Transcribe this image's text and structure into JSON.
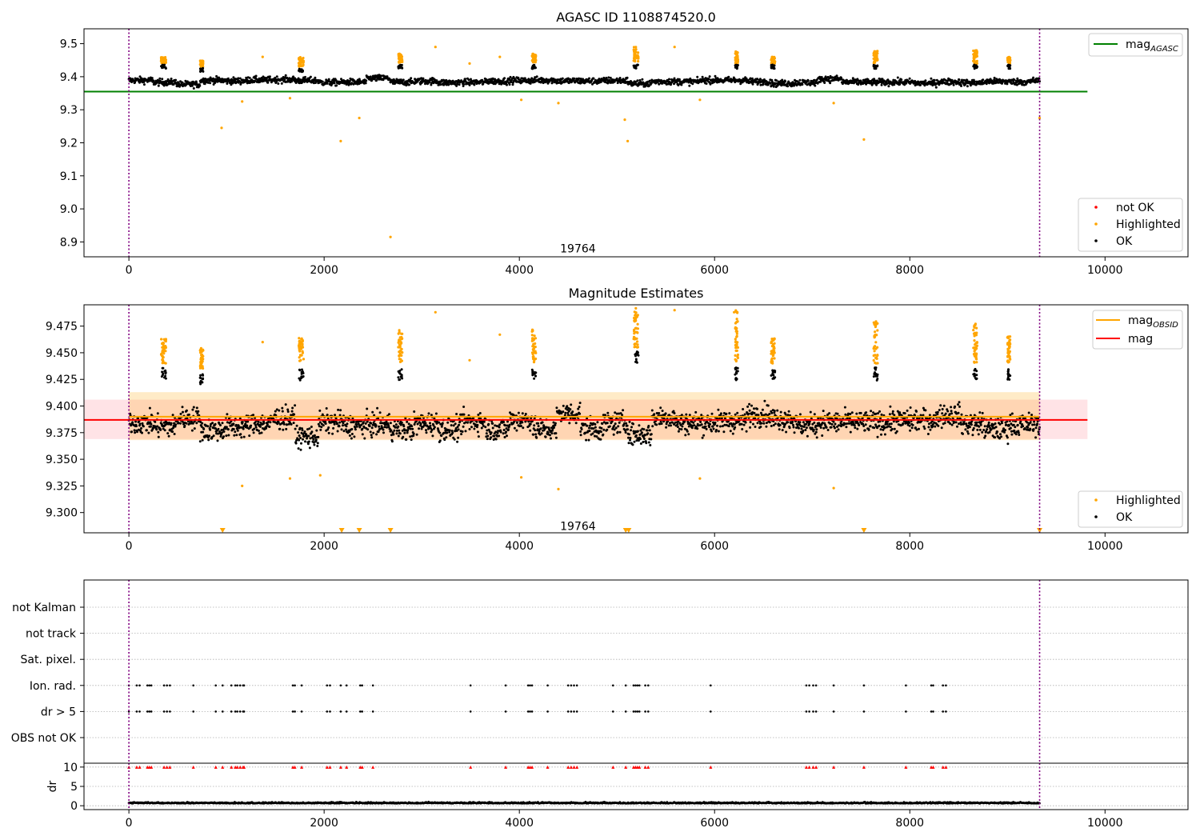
{
  "chart_data": [
    {
      "panel": "top",
      "type": "scatter",
      "title": "AGASC ID 1108874520.0",
      "xlim": [
        -460,
        10850
      ],
      "ylim": [
        8.855,
        9.545
      ],
      "xticks": [
        0,
        2000,
        4000,
        6000,
        8000,
        10000
      ],
      "yticks": [
        8.9,
        9.0,
        9.1,
        9.2,
        9.3,
        9.4,
        9.5
      ],
      "yticks_labels": [
        "8.9",
        "9.0",
        "9.1",
        "9.2",
        "9.3",
        "9.4",
        "9.5"
      ],
      "annotation": {
        "text": "19764",
        "x": 4600,
        "y": 8.875
      },
      "vlines": [
        0,
        9330
      ],
      "hline": {
        "name_main": "mag",
        "name_sub": "AGASC",
        "y": 9.355,
        "x": [
          -460,
          9820
        ],
        "color": "#008000"
      },
      "legend_lines": [
        {
          "main": "mag",
          "sub": "AGASC",
          "color": "#008000"
        }
      ],
      "legend_points": [
        {
          "name": "not OK",
          "color": "#ff0000"
        },
        {
          "name": "Highlighted",
          "color": "#ffa500"
        },
        {
          "name": "OK",
          "color": "#000000"
        }
      ],
      "series": [
        {
          "name": "OK",
          "color": "#000000",
          "x_range": [
            0,
            9330
          ],
          "level": 9.385,
          "noise": 0.012
        },
        {
          "name": "Highlighted",
          "color": "#ffa500",
          "clusters": [
            [
              330,
              380,
              9.44,
              9.46
            ],
            [
              730,
              760,
              9.43,
              9.45
            ],
            [
              1740,
              1790,
              9.43,
              9.46
            ],
            [
              2760,
              2800,
              9.44,
              9.47
            ],
            [
              4130,
              4170,
              9.44,
              9.47
            ],
            [
              5170,
              5220,
              9.44,
              9.49
            ],
            [
              6210,
              6240,
              9.44,
              9.48
            ],
            [
              6580,
              6620,
              9.44,
              9.46
            ],
            [
              7630,
              7670,
              9.44,
              9.48
            ],
            [
              8650,
              8690,
              9.44,
              9.48
            ],
            [
              9000,
              9030,
              9.44,
              9.46
            ]
          ],
          "outliers": [
            [
              950,
              9.245
            ],
            [
              1160,
              9.325
            ],
            [
              1370,
              9.46
            ],
            [
              1650,
              9.335
            ],
            [
              2170,
              9.205
            ],
            [
              2360,
              9.275
            ],
            [
              2680,
              8.915
            ],
            [
              3140,
              9.49
            ],
            [
              3490,
              9.44
            ],
            [
              3800,
              9.46
            ],
            [
              4020,
              9.33
            ],
            [
              4400,
              9.32
            ],
            [
              5080,
              9.27
            ],
            [
              5110,
              9.205
            ],
            [
              5590,
              9.49
            ],
            [
              5850,
              9.33
            ],
            [
              7220,
              9.32
            ],
            [
              7530,
              9.21
            ],
            [
              9330,
              9.275
            ]
          ]
        }
      ]
    },
    {
      "panel": "middle",
      "type": "scatter",
      "title": "Magnitude Estimates",
      "xlim": [
        -460,
        10850
      ],
      "ylim": [
        9.281,
        9.495
      ],
      "xticks": [
        0,
        2000,
        4000,
        6000,
        8000,
        10000
      ],
      "yticks": [
        9.3,
        9.325,
        9.35,
        9.375,
        9.4,
        9.425,
        9.45,
        9.475
      ],
      "yticks_labels": [
        "9.300",
        "9.325",
        "9.350",
        "9.375",
        "9.400",
        "9.425",
        "9.450",
        "9.475"
      ],
      "annotation": {
        "text": "19764",
        "x": 4600,
        "y": 9.285
      },
      "vlines": [
        0,
        9330
      ],
      "bands": [
        {
          "color": "#ffc0c8",
          "opacity": 0.45,
          "y": [
            9.369,
            9.406
          ],
          "x": [
            -460,
            9820
          ]
        },
        {
          "color": "#ffa500",
          "opacity": 0.22,
          "y": [
            9.368,
            9.413
          ],
          "x": [
            0,
            9330
          ]
        }
      ],
      "hlines": [
        {
          "y": 9.387,
          "x": [
            -460,
            9820
          ],
          "color": "#ff0000"
        },
        {
          "y": 9.39,
          "x": [
            0,
            9330
          ],
          "color": "#ffa500"
        }
      ],
      "legend_lines": [
        {
          "main": "mag",
          "sub": "OBSID",
          "color": "#ffa500"
        },
        {
          "main": "mag",
          "sub": "",
          "color": "#ff0000"
        }
      ],
      "legend_points": [
        {
          "name": "Highlighted",
          "color": "#ffa500"
        },
        {
          "name": "OK",
          "color": "#000000"
        }
      ],
      "triangles_x": [
        960,
        2180,
        2360,
        2680,
        5090,
        5120,
        7530,
        9330
      ],
      "series": [
        {
          "name": "OK",
          "color": "#000000",
          "x_range": [
            0,
            9330
          ],
          "level": 9.385,
          "noise": 0.013
        },
        {
          "name": "Highlighted",
          "color": "#ffa500",
          "clusters": [
            [
              330,
              380,
              9.44,
              9.465
            ],
            [
              730,
              760,
              9.435,
              9.455
            ],
            [
              1740,
              1790,
              9.44,
              9.465
            ],
            [
              2760,
              2800,
              9.44,
              9.472
            ],
            [
              4130,
              4170,
              9.44,
              9.472
            ],
            [
              5170,
              5220,
              9.455,
              9.492
            ],
            [
              6210,
              6240,
              9.44,
              9.49
            ],
            [
              6580,
              6620,
              9.44,
              9.465
            ],
            [
              7630,
              7670,
              9.44,
              9.48
            ],
            [
              8650,
              8690,
              9.44,
              9.478
            ],
            [
              9000,
              9030,
              9.44,
              9.466
            ]
          ],
          "outliers": [
            [
              1160,
              9.325
            ],
            [
              1370,
              9.46
            ],
            [
              1650,
              9.332
            ],
            [
              1960,
              9.335
            ],
            [
              3140,
              9.488
            ],
            [
              3490,
              9.443
            ],
            [
              3800,
              9.467
            ],
            [
              4020,
              9.333
            ],
            [
              4400,
              9.322
            ],
            [
              5590,
              9.49
            ],
            [
              5850,
              9.332
            ],
            [
              6200,
              9.488
            ],
            [
              7220,
              9.323
            ]
          ]
        }
      ]
    },
    {
      "panel": "flags",
      "type": "scatter",
      "xlim": [
        -460,
        10850
      ],
      "categories": [
        "not Kalman",
        "not track",
        "Sat. pixel.",
        "Ion. rad.",
        "dr > 5",
        "OBS not OK"
      ],
      "flag_x": [
        0,
        80,
        110,
        190,
        210,
        230,
        360,
        390,
        420,
        660,
        890,
        960,
        1050,
        1090,
        1110,
        1140,
        1170,
        1180,
        1680,
        1700,
        1770,
        2030,
        2060,
        2170,
        2230,
        2370,
        2390,
        2500,
        3500,
        3860,
        4090,
        4110,
        4130,
        4290,
        4500,
        4530,
        4560,
        4590,
        4960,
        5090,
        5170,
        5190,
        5210,
        5230,
        5290,
        5320,
        5960,
        6940,
        6970,
        7010,
        7040,
        7220,
        7530,
        7960,
        8220,
        8240,
        8340,
        8370
      ],
      "flag_rows": [
        "Ion. rad.",
        "dr > 5"
      ]
    },
    {
      "panel": "dr",
      "type": "scatter",
      "ylabel": "dr",
      "xlim": [
        -460,
        10850
      ],
      "ylim": [
        -1,
        11
      ],
      "xticks": [
        0,
        2000,
        4000,
        6000,
        8000,
        10000
      ],
      "yticks": [
        0,
        5,
        10
      ],
      "yticks_labels": [
        "0",
        "5",
        "10"
      ],
      "vlines": [
        0,
        9330
      ],
      "series": [
        {
          "name": "dr",
          "color": "#000000",
          "x_range": [
            0,
            9330
          ],
          "level": 0.6,
          "noise": 0.3
        },
        {
          "name": "dr > 5",
          "color": "#ff0000",
          "y": 10,
          "marker": "triangle"
        }
      ]
    }
  ]
}
